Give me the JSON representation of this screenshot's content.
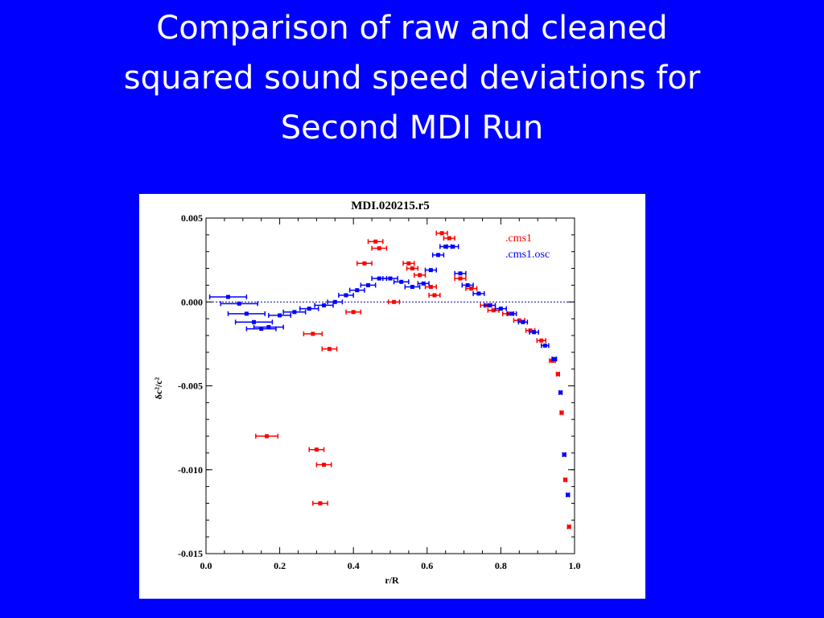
{
  "slide": {
    "title_lines": [
      "Comparison  of raw and cleaned",
      "squared sound speed deviations for",
      "Second MDI Run"
    ],
    "background_color": "#0000ff",
    "title_color": "#ffffff"
  },
  "chart_data": {
    "type": "scatter",
    "title": "MDI.020215.r5",
    "xlabel": "r/R",
    "ylabel": "δc²/c²",
    "xlim": [
      0.0,
      1.0
    ],
    "ylim": [
      -0.015,
      0.005
    ],
    "x_ticks": [
      "0.0",
      "0.2",
      "0.4",
      "0.6",
      "0.8",
      "1.0"
    ],
    "y_ticks": [
      "0.005",
      "0.000",
      "-0.005",
      "-0.010",
      "-0.015"
    ],
    "grid": false,
    "zero_line": true,
    "legend_position": "top-right",
    "series": [
      {
        "name": ".cms1",
        "color": "#ff0000",
        "points": [
          {
            "x": 0.165,
            "y": -0.008,
            "xerr": 0.03
          },
          {
            "x": 0.29,
            "y": -0.0019,
            "xerr": 0.025
          },
          {
            "x": 0.335,
            "y": -0.0028,
            "xerr": 0.02
          },
          {
            "x": 0.3,
            "y": -0.0088,
            "xerr": 0.02
          },
          {
            "x": 0.32,
            "y": -0.0097,
            "xerr": 0.02
          },
          {
            "x": 0.31,
            "y": -0.012,
            "xerr": 0.02
          },
          {
            "x": 0.4,
            "y": -0.0006,
            "xerr": 0.02
          },
          {
            "x": 0.43,
            "y": 0.0023,
            "xerr": 0.02
          },
          {
            "x": 0.46,
            "y": 0.0036,
            "xerr": 0.02
          },
          {
            "x": 0.47,
            "y": 0.0032,
            "xerr": 0.02
          },
          {
            "x": 0.51,
            "y": 0.0,
            "xerr": 0.015
          },
          {
            "x": 0.55,
            "y": 0.0023,
            "xerr": 0.015
          },
          {
            "x": 0.56,
            "y": 0.002,
            "xerr": 0.015
          },
          {
            "x": 0.58,
            "y": 0.0016,
            "xerr": 0.015
          },
          {
            "x": 0.61,
            "y": 0.0009,
            "xerr": 0.015
          },
          {
            "x": 0.62,
            "y": 0.0004,
            "xerr": 0.015
          },
          {
            "x": 0.64,
            "y": 0.0041,
            "xerr": 0.015
          },
          {
            "x": 0.66,
            "y": 0.0038,
            "xerr": 0.015
          },
          {
            "x": 0.69,
            "y": 0.0014,
            "xerr": 0.015
          },
          {
            "x": 0.72,
            "y": 0.0008,
            "xerr": 0.015
          },
          {
            "x": 0.76,
            "y": -0.0002,
            "xerr": 0.015
          },
          {
            "x": 0.78,
            "y": -0.0005,
            "xerr": 0.015
          },
          {
            "x": 0.82,
            "y": -0.0007,
            "xerr": 0.015
          },
          {
            "x": 0.85,
            "y": -0.0011,
            "xerr": 0.015
          },
          {
            "x": 0.88,
            "y": -0.0017,
            "xerr": 0.012
          },
          {
            "x": 0.91,
            "y": -0.0023,
            "xerr": 0.012
          },
          {
            "x": 0.94,
            "y": -0.0035,
            "xerr": 0.008
          },
          {
            "x": 0.955,
            "y": -0.0043,
            "xerr": 0.004
          },
          {
            "x": 0.965,
            "y": -0.0066,
            "xerr": 0.004
          },
          {
            "x": 0.975,
            "y": -0.0106,
            "xerr": 0.004
          },
          {
            "x": 0.985,
            "y": -0.0134,
            "xerr": 0.004
          }
        ]
      },
      {
        "name": ".cms1.osc",
        "color": "#0000ff",
        "points": [
          {
            "x": 0.06,
            "y": 0.0003,
            "xerr": 0.05
          },
          {
            "x": 0.09,
            "y": -0.0001,
            "xerr": 0.05
          },
          {
            "x": 0.11,
            "y": -0.0007,
            "xerr": 0.05
          },
          {
            "x": 0.13,
            "y": -0.0012,
            "xerr": 0.05
          },
          {
            "x": 0.15,
            "y": -0.0016,
            "xerr": 0.04
          },
          {
            "x": 0.17,
            "y": -0.0015,
            "xerr": 0.04
          },
          {
            "x": 0.2,
            "y": -0.0008,
            "xerr": 0.03
          },
          {
            "x": 0.24,
            "y": -0.0006,
            "xerr": 0.03
          },
          {
            "x": 0.28,
            "y": -0.0004,
            "xerr": 0.025
          },
          {
            "x": 0.32,
            "y": -0.0002,
            "xerr": 0.025
          },
          {
            "x": 0.35,
            "y": 0.0,
            "xerr": 0.02
          },
          {
            "x": 0.38,
            "y": 0.0004,
            "xerr": 0.02
          },
          {
            "x": 0.41,
            "y": 0.0007,
            "xerr": 0.02
          },
          {
            "x": 0.44,
            "y": 0.001,
            "xerr": 0.02
          },
          {
            "x": 0.47,
            "y": 0.0014,
            "xerr": 0.02
          },
          {
            "x": 0.5,
            "y": 0.0014,
            "xerr": 0.02
          },
          {
            "x": 0.53,
            "y": 0.0012,
            "xerr": 0.02
          },
          {
            "x": 0.56,
            "y": 0.0009,
            "xerr": 0.02
          },
          {
            "x": 0.59,
            "y": 0.0011,
            "xerr": 0.015
          },
          {
            "x": 0.61,
            "y": 0.0019,
            "xerr": 0.015
          },
          {
            "x": 0.63,
            "y": 0.0028,
            "xerr": 0.015
          },
          {
            "x": 0.65,
            "y": 0.0033,
            "xerr": 0.015
          },
          {
            "x": 0.67,
            "y": 0.0033,
            "xerr": 0.015
          },
          {
            "x": 0.69,
            "y": 0.0017,
            "xerr": 0.015
          },
          {
            "x": 0.71,
            "y": 0.001,
            "xerr": 0.015
          },
          {
            "x": 0.74,
            "y": 0.0005,
            "xerr": 0.015
          },
          {
            "x": 0.77,
            "y": -0.0002,
            "xerr": 0.015
          },
          {
            "x": 0.8,
            "y": -0.0004,
            "xerr": 0.015
          },
          {
            "x": 0.83,
            "y": -0.0007,
            "xerr": 0.012
          },
          {
            "x": 0.86,
            "y": -0.0012,
            "xerr": 0.012
          },
          {
            "x": 0.89,
            "y": -0.0018,
            "xerr": 0.012
          },
          {
            "x": 0.92,
            "y": -0.0026,
            "xerr": 0.01
          },
          {
            "x": 0.945,
            "y": -0.0034,
            "xerr": 0.006
          },
          {
            "x": 0.962,
            "y": -0.0054,
            "xerr": 0.004
          },
          {
            "x": 0.972,
            "y": -0.0091,
            "xerr": 0.004
          },
          {
            "x": 0.982,
            "y": -0.0115,
            "xerr": 0.004
          }
        ]
      }
    ]
  }
}
